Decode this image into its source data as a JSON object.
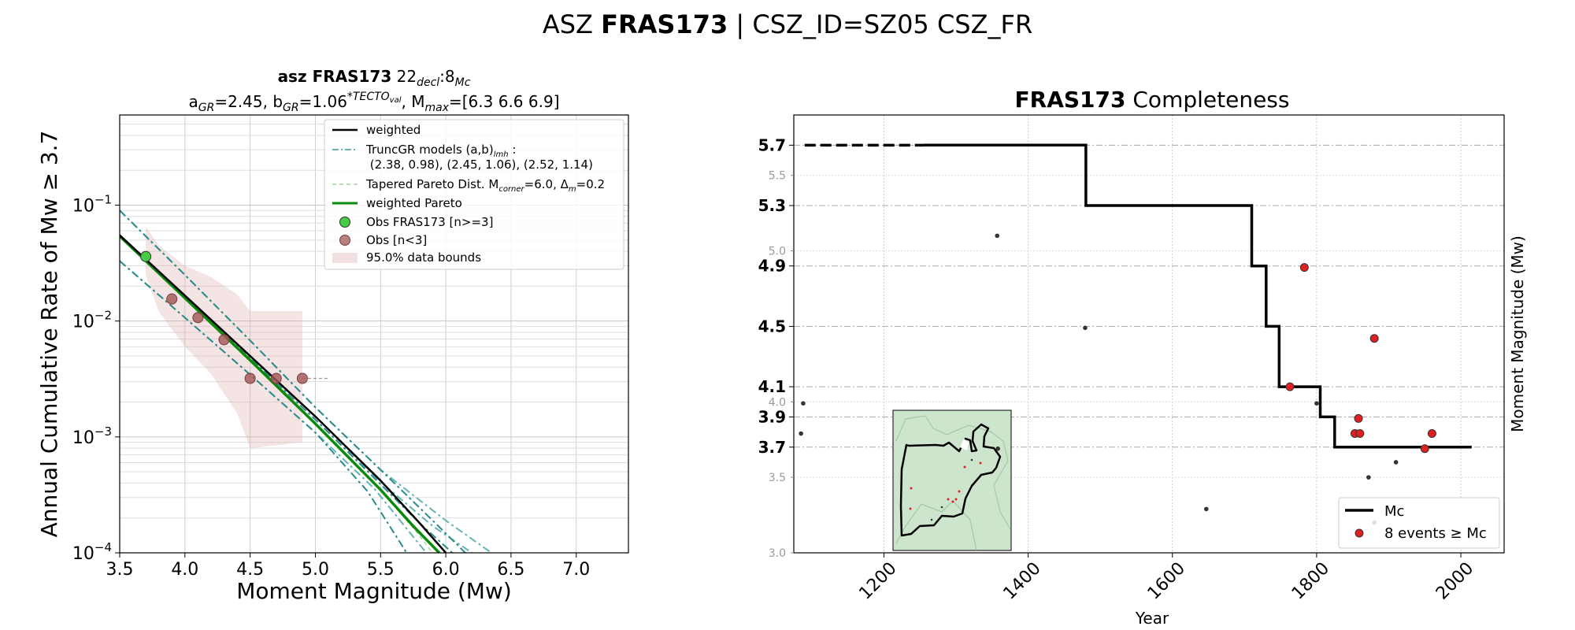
{
  "figure": {
    "title_prefix": "ASZ ",
    "title_bold": "FRAS173",
    "title_suffix": " | CSZ_ID=SZ05 CSZ_FR"
  },
  "chart_data": [
    {
      "type": "line",
      "title_bold": "asz FRAS173",
      "title_extra": "22",
      "title_extra_sub": "decl",
      "title_extra2": ":8",
      "title_extra2_sub": "Mc",
      "subtitle": {
        "a_label": "a",
        "a_sub": "GR",
        "a_val": "=2.45,  ",
        "b_label": "b",
        "b_sub": "GR",
        "b_val": "=1.06",
        "b_sup": "*TECTO",
        "b_sup_sub": "val",
        "mmax_label": ", M",
        "mmax_sub": "max",
        "mmax_val": "=[6.3 6.6 6.9]"
      },
      "xlabel": "Moment Magnitude (Mw)",
      "ylabel": "Annual Cumulative Rate of Mw  ≥  3.7",
      "xlim": [
        3.5,
        7.4
      ],
      "ylim": [
        0.0001,
        0.6
      ],
      "yscale": "log",
      "xticks": [
        "3.5",
        "4.0",
        "4.5",
        "5.0",
        "5.5",
        "6.0",
        "6.5",
        "7.0"
      ],
      "xtick_values": [
        3.5,
        4.0,
        4.5,
        5.0,
        5.5,
        6.0,
        6.5,
        7.0
      ],
      "yticks": [
        {
          "base": "10",
          "exp": "−4",
          "value": 0.0001
        },
        {
          "base": "10",
          "exp": "−3",
          "value": 0.001
        },
        {
          "base": "10",
          "exp": "−2",
          "value": 0.01
        },
        {
          "base": "10",
          "exp": "−1",
          "value": 0.1
        }
      ],
      "grid": true,
      "legend_position": "top-right",
      "legend": {
        "weighted": "weighted",
        "truncgr_line1": "TruncGR models (a,b)",
        "truncgr_line1_sub": "lmh",
        "truncgr_line1_end": " :",
        "truncgr_line2": " (2.38, 0.98), (2.45, 1.06), (2.52, 1.14)",
        "tapered_prefix": "Tapered Pareto Dist. M",
        "tapered_sub": "corner",
        "tapered_mid": "=6.0, Δ",
        "tapered_sub2": "m",
        "tapered_end": "=0.2",
        "weighted_pareto": "weighted Pareto",
        "obs_main": "Obs FRAS173 [n>=3]",
        "obs_few": "Obs [n<3]",
        "bounds": "95.0% data bounds"
      },
      "series": [
        {
          "role": "weighted",
          "color": "#000000",
          "x": [
            3.5,
            4.0,
            4.5,
            5.0,
            5.5,
            5.8,
            6.0
          ],
          "y": [
            0.055,
            0.0166,
            0.005,
            0.0015,
            0.00042,
            0.00018,
            0.0001
          ]
        },
        {
          "role": "truncgr-mid",
          "color": "#2e8b8b",
          "x": [
            3.5,
            4.0,
            4.5,
            5.0,
            5.5,
            5.8,
            6.05,
            6.25
          ],
          "y": [
            0.055,
            0.0162,
            0.0048,
            0.00141,
            0.00039,
            0.00018,
            0.0001,
            5e-05
          ]
        },
        {
          "role": "truncgr-mid-2",
          "color": "#66b2b2",
          "x": [
            3.5,
            4.0,
            4.5,
            5.0,
            5.5,
            5.9,
            6.2,
            6.4
          ],
          "y": [
            0.055,
            0.0162,
            0.0048,
            0.00141,
            0.00041,
            0.00017,
            0.0001,
            5e-05
          ]
        },
        {
          "role": "truncgr-low",
          "color": "#2e8b8b",
          "x": [
            3.5,
            4.0,
            4.5,
            5.0,
            5.4,
            5.7
          ],
          "y": [
            0.033,
            0.0107,
            0.00345,
            0.00109,
            0.00034,
            0.0001
          ]
        },
        {
          "role": "truncgr-low-2",
          "color": "#66b2b2",
          "x": [
            3.5,
            4.0,
            4.5,
            5.0,
            5.45,
            5.85
          ],
          "y": [
            0.033,
            0.0107,
            0.00345,
            0.00109,
            0.00036,
            0.0001
          ]
        },
        {
          "role": "truncgr-high",
          "color": "#2e8b8b",
          "x": [
            3.5,
            4.0,
            4.5,
            5.0,
            5.5,
            5.9,
            6.15
          ],
          "y": [
            0.09,
            0.025,
            0.0068,
            0.0018,
            0.00052,
            0.00019,
            0.0001
          ]
        },
        {
          "role": "truncgr-high-2",
          "color": "#66b2b2",
          "x": [
            3.5,
            4.0,
            4.5,
            5.0,
            5.5,
            6.0,
            6.35
          ],
          "y": [
            0.09,
            0.025,
            0.0068,
            0.0018,
            0.00052,
            0.00019,
            0.0001
          ]
        },
        {
          "role": "tapered",
          "color": "#9fd49f",
          "x": [
            3.5,
            4.0,
            4.5,
            5.0,
            5.5,
            5.8,
            6.0
          ],
          "y": [
            0.055,
            0.0162,
            0.0047,
            0.00133,
            0.00035,
            0.00014,
            7e-05
          ]
        },
        {
          "role": "weighted-pareto",
          "color": "#0a8a0a",
          "x": [
            3.5,
            4.0,
            4.5,
            5.0,
            5.5,
            5.75,
            5.95
          ],
          "y": [
            0.054,
            0.0158,
            0.0046,
            0.0013,
            0.00035,
            0.00017,
            0.0001
          ]
        }
      ],
      "observations_main": [
        {
          "x": 3.7,
          "y": 0.036
        }
      ],
      "observations_few": [
        {
          "x": 3.9,
          "y": 0.0155
        },
        {
          "x": 4.1,
          "y": 0.0107
        },
        {
          "x": 4.3,
          "y": 0.0069
        },
        {
          "x": 4.5,
          "y": 0.0032
        },
        {
          "x": 4.7,
          "y": 0.0032
        },
        {
          "x": 4.9,
          "y": 0.0032
        }
      ],
      "obs_main_color": "#44cc44",
      "obs_few_color": "#a05555",
      "bounds_color": "#d9a7a7",
      "bounds_upper": [
        [
          3.7,
          0.065
        ],
        [
          3.8,
          0.045
        ],
        [
          4.0,
          0.03
        ],
        [
          4.2,
          0.024
        ],
        [
          4.4,
          0.017
        ],
        [
          4.5,
          0.0122
        ],
        [
          4.9,
          0.0122
        ]
      ],
      "bounds_lower": [
        [
          4.9,
          0.0009
        ],
        [
          4.5,
          0.0008
        ],
        [
          4.4,
          0.0016
        ],
        [
          4.2,
          0.0035
        ],
        [
          4.0,
          0.006
        ],
        [
          3.8,
          0.012
        ],
        [
          3.7,
          0.025
        ]
      ],
      "dashed_tail": {
        "x": [
          4.9,
          5.1
        ],
        "y": [
          0.0032,
          0.0032
        ]
      }
    },
    {
      "type": "line",
      "title_bold": "FRAS173",
      "title_rest": " Completeness",
      "xlabel": "Year",
      "ylabel": "Moment Magnitude (Mw)",
      "xlim": [
        1075,
        2060
      ],
      "ylim": [
        3.0,
        5.9
      ],
      "xticks": [
        "1200",
        "1400",
        "1600",
        "1800",
        "2000"
      ],
      "xtick_values": [
        1200,
        1400,
        1600,
        1800,
        2000
      ],
      "yticks_minor": [
        "3.0",
        "3.5",
        "4.0",
        "5.0",
        "5.5"
      ],
      "yticks_minor_values": [
        3.0,
        3.5,
        4.0,
        5.0,
        5.5
      ],
      "yticks_major": [
        "3.7",
        "3.9",
        "4.1",
        "4.5",
        "4.9",
        "5.3",
        "5.7"
      ],
      "yticks_major_values": [
        3.7,
        3.9,
        4.1,
        4.5,
        4.9,
        5.3,
        5.7
      ],
      "grid": true,
      "legend_position": "bottom-right",
      "legend": {
        "mc": "Mc",
        "events": "8 events  ≥  Mc"
      },
      "mc_step": {
        "x": [
          1255,
          1480,
          1480,
          1710,
          1710,
          1730,
          1730,
          1748,
          1748,
          1805,
          1805,
          1825,
          1825,
          2015
        ],
        "y": [
          5.7,
          5.7,
          5.3,
          5.3,
          4.9,
          4.9,
          4.5,
          4.5,
          4.1,
          4.1,
          3.9,
          3.9,
          3.7,
          3.7
        ]
      },
      "mc_dashed": {
        "x": [
          1090,
          1255
        ],
        "y": [
          5.7,
          5.7
        ]
      },
      "events_above": [
        {
          "x": 1783,
          "y": 4.89
        },
        {
          "x": 1880,
          "y": 4.42
        },
        {
          "x": 1763,
          "y": 4.1
        },
        {
          "x": 1858,
          "y": 3.89
        },
        {
          "x": 1853,
          "y": 3.79
        },
        {
          "x": 1860,
          "y": 3.79
        },
        {
          "x": 1960,
          "y": 3.79
        },
        {
          "x": 1950,
          "y": 3.69
        }
      ],
      "events_below": [
        {
          "x": 1088,
          "y": 3.99
        },
        {
          "x": 1085,
          "y": 3.79
        },
        {
          "x": 1357,
          "y": 5.1
        },
        {
          "x": 1479,
          "y": 4.49
        },
        {
          "x": 1358,
          "y": 3.69
        },
        {
          "x": 1647,
          "y": 3.29
        },
        {
          "x": 1800,
          "y": 3.99
        },
        {
          "x": 1872,
          "y": 3.5
        },
        {
          "x": 1910,
          "y": 3.6
        },
        {
          "x": 1880,
          "y": 3.2
        }
      ],
      "event_color": "#e02020"
    }
  ]
}
